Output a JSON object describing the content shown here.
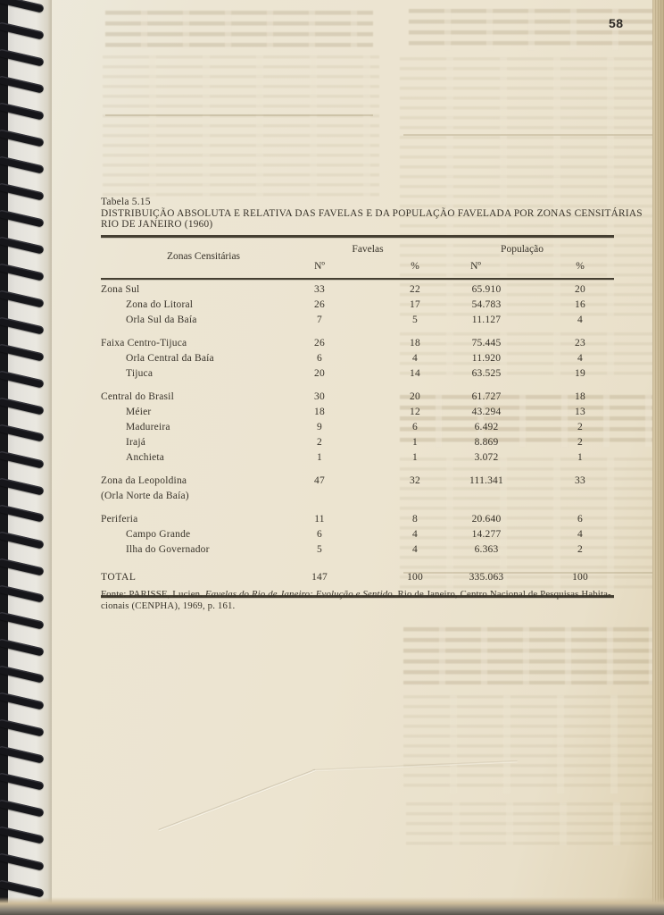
{
  "page": {
    "number": "58"
  },
  "table": {
    "caption": "Tabela 5.15",
    "title_line1": "DISTRIBUIÇÃO ABSOLUTA E RELATIVA DAS FAVELAS E DA POPULAÇÃO FAVELADA POR ZONAS CENSITÁRIAS",
    "title_line2": "RIO DE JANEIRO (1960)",
    "header": {
      "zonas": "Zonas Censitárias",
      "favelas": "Favelas",
      "populacao": "População",
      "no": "Nº",
      "pct": "%"
    },
    "rows": [
      {
        "label": "Zona Sul",
        "indent": 0,
        "gap": false,
        "total": false,
        "fav_no": "33",
        "fav_pct": "22",
        "pop_no": "65.910",
        "pop_pct": "20"
      },
      {
        "label": "Zona do Litoral",
        "indent": 1,
        "gap": false,
        "total": false,
        "fav_no": "26",
        "fav_pct": "17",
        "pop_no": "54.783",
        "pop_pct": "16"
      },
      {
        "label": "Orla Sul da Baía",
        "indent": 1,
        "gap": false,
        "total": false,
        "fav_no": "7",
        "fav_pct": "5",
        "pop_no": "11.127",
        "pop_pct": "4"
      },
      {
        "label": "Faixa Centro-Tijuca",
        "indent": 0,
        "gap": true,
        "total": false,
        "fav_no": "26",
        "fav_pct": "18",
        "pop_no": "75.445",
        "pop_pct": "23"
      },
      {
        "label": "Orla Central da Baía",
        "indent": 1,
        "gap": false,
        "total": false,
        "fav_no": "6",
        "fav_pct": "4",
        "pop_no": "11.920",
        "pop_pct": "4"
      },
      {
        "label": "Tijuca",
        "indent": 1,
        "gap": false,
        "total": false,
        "fav_no": "20",
        "fav_pct": "14",
        "pop_no": "63.525",
        "pop_pct": "19"
      },
      {
        "label": "Central do Brasil",
        "indent": 0,
        "gap": true,
        "total": false,
        "fav_no": "30",
        "fav_pct": "20",
        "pop_no": "61.727",
        "pop_pct": "18"
      },
      {
        "label": "Méier",
        "indent": 1,
        "gap": false,
        "total": false,
        "fav_no": "18",
        "fav_pct": "12",
        "pop_no": "43.294",
        "pop_pct": "13"
      },
      {
        "label": "Madureira",
        "indent": 1,
        "gap": false,
        "total": false,
        "fav_no": "9",
        "fav_pct": "6",
        "pop_no": "6.492",
        "pop_pct": "2"
      },
      {
        "label": "Irajá",
        "indent": 1,
        "gap": false,
        "total": false,
        "fav_no": "2",
        "fav_pct": "1",
        "pop_no": "8.869",
        "pop_pct": "2"
      },
      {
        "label": "Anchieta",
        "indent": 1,
        "gap": false,
        "total": false,
        "fav_no": "1",
        "fav_pct": "1",
        "pop_no": "3.072",
        "pop_pct": "1"
      },
      {
        "label": "Zona da Leopoldina",
        "indent": 0,
        "gap": true,
        "total": false,
        "fav_no": "47",
        "fav_pct": "32",
        "pop_no": "111.341",
        "pop_pct": "33"
      },
      {
        "label": "(Orla Norte da Baía)",
        "indent": 0,
        "gap": false,
        "total": false,
        "fav_no": "",
        "fav_pct": "",
        "pop_no": "",
        "pop_pct": ""
      },
      {
        "label": "Periferia",
        "indent": 0,
        "gap": true,
        "total": false,
        "fav_no": "11",
        "fav_pct": "8",
        "pop_no": "20.640",
        "pop_pct": "6"
      },
      {
        "label": "Campo Grande",
        "indent": 1,
        "gap": false,
        "total": false,
        "fav_no": "6",
        "fav_pct": "4",
        "pop_no": "14.277",
        "pop_pct": "4"
      },
      {
        "label": "Ilha do Governador",
        "indent": 1,
        "gap": false,
        "total": false,
        "fav_no": "5",
        "fav_pct": "4",
        "pop_no": "6.363",
        "pop_pct": "2"
      },
      {
        "label": "TOTAL",
        "indent": 0,
        "gap": false,
        "total": true,
        "fav_no": "147",
        "fav_pct": "100",
        "pop_no": "335.063",
        "pop_pct": "100"
      }
    ]
  },
  "source": {
    "prefix": "Fonte: PARISSE, Lucien. ",
    "italic": "Favelas do Rio de Janeiro: Evolução e Sentido.",
    "rest_line1": " Rio de Janeiro, Centro Nacional de Pesquisas Habita-",
    "line2": "cionais (CENPHA), 1969, p. 161."
  }
}
